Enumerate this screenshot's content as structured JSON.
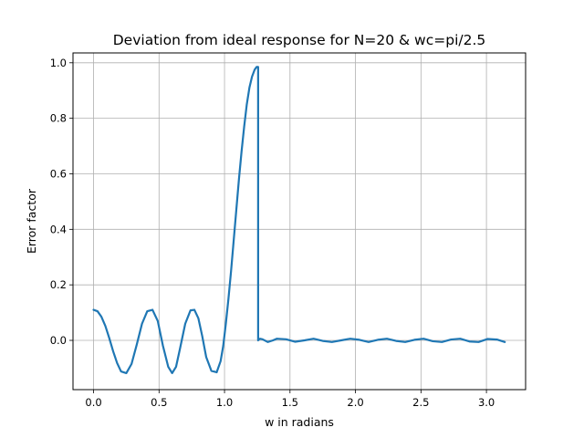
{
  "chart_data": {
    "type": "line",
    "title": "Deviation from ideal response for N=20 & wc=pi/2.5",
    "xlabel": "w in radians",
    "ylabel": "Error factor",
    "xlim": [
      -0.157,
      3.299
    ],
    "ylim": [
      -0.1775,
      1.0355
    ],
    "x_ticks": [
      0.0,
      0.5,
      1.0,
      1.5,
      2.0,
      2.5,
      3.0
    ],
    "x_tick_labels": [
      "0.0",
      "0.5",
      "1.0",
      "1.5",
      "2.0",
      "2.5",
      "3.0"
    ],
    "y_ticks": [
      0.0,
      0.2,
      0.4,
      0.6,
      0.8,
      1.0
    ],
    "y_tick_labels": [
      "0.0",
      "0.2",
      "0.4",
      "0.6",
      "0.8",
      "1.0"
    ],
    "grid": true,
    "color": "#1f77b4",
    "series": [
      {
        "x": [
          0.0,
          0.03,
          0.06,
          0.09,
          0.12,
          0.15,
          0.18,
          0.21,
          0.25,
          0.29,
          0.33,
          0.37,
          0.41,
          0.45,
          0.49,
          0.53,
          0.57,
          0.6,
          0.63,
          0.66,
          0.7,
          0.74,
          0.77,
          0.8,
          0.83,
          0.86,
          0.9,
          0.94,
          0.97,
          0.99,
          1.01,
          1.03,
          1.05,
          1.07,
          1.09,
          1.11,
          1.13,
          1.15,
          1.17,
          1.19,
          1.21,
          1.23,
          1.245,
          1.2566,
          1.2567,
          1.27,
          1.29,
          1.33,
          1.37,
          1.4,
          1.47,
          1.54,
          1.61,
          1.68,
          1.75,
          1.82,
          1.89,
          1.96,
          2.03,
          2.1,
          2.17,
          2.24,
          2.31,
          2.38,
          2.45,
          2.52,
          2.59,
          2.66,
          2.73,
          2.8,
          2.87,
          2.94,
          3.01,
          3.08,
          3.14
        ],
        "y": [
          0.11,
          0.105,
          0.085,
          0.052,
          0.008,
          -0.04,
          -0.082,
          -0.112,
          -0.118,
          -0.085,
          -0.015,
          0.06,
          0.105,
          0.11,
          0.07,
          -0.02,
          -0.095,
          -0.118,
          -0.095,
          -0.03,
          0.06,
          0.108,
          0.11,
          0.08,
          0.015,
          -0.06,
          -0.11,
          -0.115,
          -0.075,
          -0.02,
          0.06,
          0.15,
          0.25,
          0.36,
          0.47,
          0.58,
          0.68,
          0.77,
          0.85,
          0.91,
          0.95,
          0.975,
          0.985,
          0.985,
          0.0,
          0.006,
          0.004,
          -0.006,
          0.0,
          0.006,
          0.004,
          -0.005,
          0.0,
          0.006,
          -0.002,
          -0.006,
          0.0,
          0.006,
          0.002,
          -0.006,
          0.002,
          0.006,
          -0.002,
          -0.006,
          0.002,
          0.006,
          -0.003,
          -0.006,
          0.003,
          0.006,
          -0.004,
          -0.006,
          0.005,
          0.003,
          -0.006
        ]
      }
    ]
  }
}
